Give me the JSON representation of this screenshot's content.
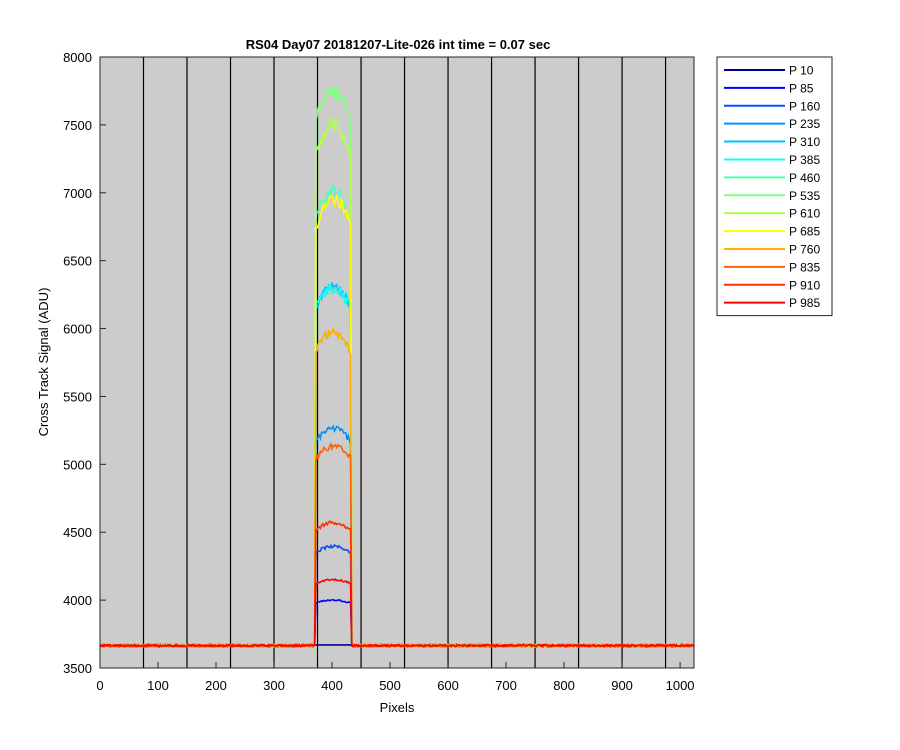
{
  "chart_data": {
    "type": "line",
    "title": "RS04 Day07 20181207-Lite-026 int time = 0.07 sec",
    "xlabel": "Pixels",
    "ylabel": "Cross Track Signal (ADU)",
    "xlim": [
      0,
      1024
    ],
    "ylim": [
      3500,
      8000
    ],
    "xticks": [
      0,
      100,
      200,
      300,
      400,
      500,
      600,
      700,
      800,
      900,
      1000
    ],
    "yticks": [
      3500,
      4000,
      4500,
      5000,
      5500,
      6000,
      6500,
      7000,
      7500,
      8000
    ],
    "vertical_lines_x": [
      75,
      150,
      225,
      300,
      375,
      450,
      525,
      600,
      675,
      750,
      825,
      900,
      975
    ],
    "background_color": "#cccccc",
    "grid": false,
    "legend_position": "outside-right",
    "baseline": 3665,
    "plateau_x_range": [
      372,
      432
    ],
    "series": [
      {
        "name": "P 10",
        "color": "#00008f",
        "plateau": 3670
      },
      {
        "name": "P 85",
        "color": "#0000ff",
        "plateau": 4000
      },
      {
        "name": "P 160",
        "color": "#0050ff",
        "plateau": 4395
      },
      {
        "name": "P 235",
        "color": "#0090ff",
        "plateau": 5265
      },
      {
        "name": "P 310",
        "color": "#00c0ff",
        "plateau": 6300
      },
      {
        "name": "P 385",
        "color": "#10ffef",
        "plateau": 6300
      },
      {
        "name": "P 460",
        "color": "#50ffaf",
        "plateau": 7000
      },
      {
        "name": "P 535",
        "color": "#80ff80",
        "plateau": 7750
      },
      {
        "name": "P 610",
        "color": "#b0ff50",
        "plateau": 7500
      },
      {
        "name": "P 685",
        "color": "#ffff00",
        "plateau": 6950
      },
      {
        "name": "P 760",
        "color": "#ffb000",
        "plateau": 5975
      },
      {
        "name": "P 835",
        "color": "#ff6000",
        "plateau": 5130
      },
      {
        "name": "P 910",
        "color": "#ff3000",
        "plateau": 4570
      },
      {
        "name": "P 985",
        "color": "#ff0000",
        "plateau": 4150
      }
    ]
  }
}
